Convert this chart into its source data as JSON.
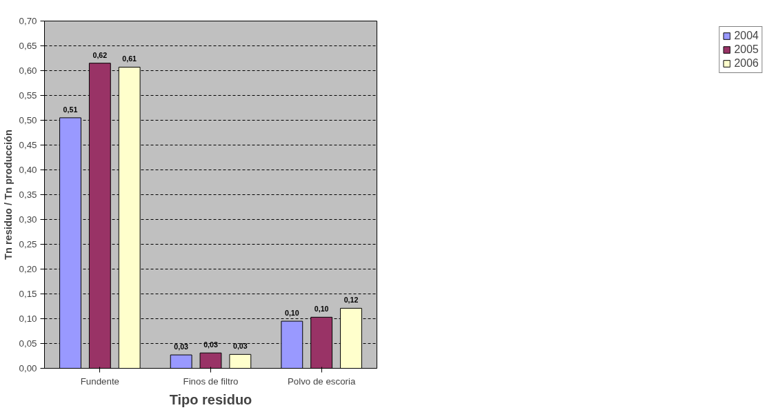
{
  "chart_data": {
    "type": "bar",
    "xlabel": "Tipo residuo",
    "ylabel": "Tn residuo / Tn producción",
    "categories": [
      "Fundente",
      "Finos de filtro",
      "Polvo de escoria"
    ],
    "series": [
      {
        "name": "2004",
        "color": "#9999ff",
        "values": [
          0.505,
          0.027,
          0.095
        ],
        "value_labels": [
          "0,51",
          "0,03",
          "0,10"
        ]
      },
      {
        "name": "2005",
        "color": "#993366",
        "values": [
          0.615,
          0.031,
          0.103
        ],
        "value_labels": [
          "0,62",
          "0,03",
          "0,10"
        ]
      },
      {
        "name": "2006",
        "color": "#ffffcc",
        "values": [
          0.607,
          0.028,
          0.121
        ],
        "value_labels": [
          "0,61",
          "0,03",
          "0,12"
        ]
      }
    ],
    "ylim": [
      0,
      0.7
    ],
    "yticks": [
      {
        "value": 0,
        "label": "0,00"
      },
      {
        "value": 0.05,
        "label": "0,05"
      },
      {
        "value": 0.1,
        "label": "0,10"
      },
      {
        "value": 0.15,
        "label": "0,15"
      },
      {
        "value": 0.2,
        "label": "0,20"
      },
      {
        "value": 0.25,
        "label": "0,25"
      },
      {
        "value": 0.3,
        "label": "0,30"
      },
      {
        "value": 0.35,
        "label": "0,35"
      },
      {
        "value": 0.4,
        "label": "0,40"
      },
      {
        "value": 0.45,
        "label": "0,45"
      },
      {
        "value": 0.5,
        "label": "0,50"
      },
      {
        "value": 0.55,
        "label": "0,55"
      },
      {
        "value": 0.6,
        "label": "0,60"
      },
      {
        "value": 0.65,
        "label": "0,65"
      },
      {
        "value": 0.7,
        "label": "0,70"
      }
    ],
    "grid": "y",
    "legend": "right"
  }
}
